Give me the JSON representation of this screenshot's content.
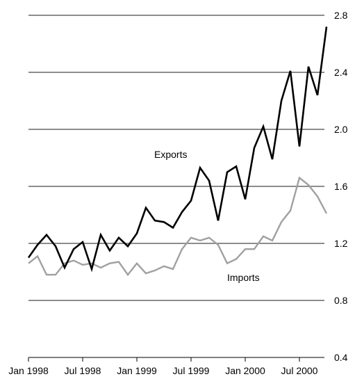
{
  "chart_data": {
    "type": "line",
    "title": "",
    "xlabel": "",
    "ylabel": "",
    "ylim": [
      0.4,
      2.8
    ],
    "y_ticks": [
      "2.8",
      "2.4",
      "2.0",
      "1.6",
      "1.2",
      "0.8",
      "0.4"
    ],
    "y_tick_values": [
      2.8,
      2.4,
      2.0,
      1.6,
      1.2,
      0.8,
      0.4
    ],
    "y_axis_side": "right",
    "grid": "horizontal",
    "x_ticks": [
      "Jan 1998",
      "Jul 1998",
      "Jan 1999",
      "Jul 1999",
      "Jan 2000",
      "Jul 2000"
    ],
    "x": [
      "Jan 1998",
      "Feb 1998",
      "Mar 1998",
      "Apr 1998",
      "May 1998",
      "Jun 1998",
      "Jul 1998",
      "Aug 1998",
      "Sep 1998",
      "Oct 1998",
      "Nov 1998",
      "Dec 1998",
      "Jan 1999",
      "Feb 1999",
      "Mar 1999",
      "Apr 1999",
      "May 1999",
      "Jun 1999",
      "Jul 1999",
      "Aug 1999",
      "Sep 1999",
      "Oct 1999",
      "Nov 1999",
      "Dec 1999",
      "Jan 2000",
      "Feb 2000",
      "Mar 2000",
      "Apr 2000",
      "May 2000",
      "Jun 2000",
      "Jul 2000",
      "Aug 2000",
      "Sep 2000",
      "Oct 2000"
    ],
    "series": [
      {
        "name": "Exports",
        "color": "#000000",
        "values": [
          1.1,
          1.19,
          1.26,
          1.18,
          1.03,
          1.16,
          1.21,
          1.02,
          1.26,
          1.15,
          1.24,
          1.18,
          1.27,
          1.45,
          1.36,
          1.35,
          1.31,
          1.42,
          1.5,
          1.73,
          1.64,
          1.36,
          1.7,
          1.74,
          1.51,
          1.87,
          2.02,
          1.79,
          2.2,
          2.41,
          1.88,
          2.44,
          2.24,
          2.72
        ]
      },
      {
        "name": "Imports",
        "color": "#a0a0a0",
        "values": [
          1.06,
          1.11,
          0.98,
          0.98,
          1.06,
          1.08,
          1.05,
          1.06,
          1.03,
          1.06,
          1.07,
          0.98,
          1.06,
          0.99,
          1.01,
          1.04,
          1.02,
          1.16,
          1.24,
          1.22,
          1.24,
          1.19,
          1.06,
          1.09,
          1.16,
          1.16,
          1.25,
          1.22,
          1.35,
          1.43,
          1.66,
          1.61,
          1.53,
          1.41
        ]
      }
    ]
  }
}
